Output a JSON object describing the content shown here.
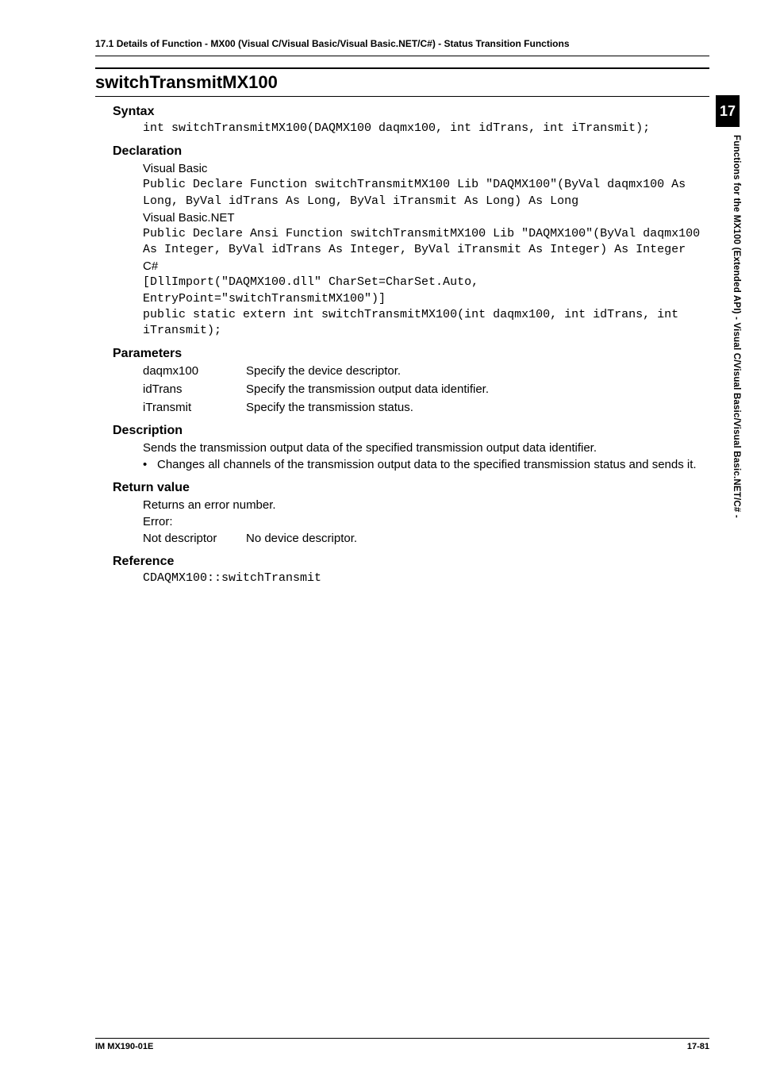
{
  "header": {
    "text": "17.1  Details of  Function - MX00 (Visual C/Visual Basic/Visual Basic.NET/C#) - Status Transition Functions"
  },
  "func_title": "switchTransmitMX100",
  "syntax": {
    "head": "Syntax",
    "code": "int switchTransmitMX100(DAQMX100 daqmx100, int idTrans, int iTransmit);"
  },
  "declaration": {
    "head": "Declaration",
    "vb_label": "Visual Basic",
    "vb_code": "Public Declare Function switchTransmitMX100 Lib \"DAQMX100\"(ByVal daqmx100 As Long, ByVal idTrans As Long, ByVal iTransmit As Long) As Long",
    "vbnet_label": "Visual Basic.NET",
    "vbnet_code": "Public Declare Ansi Function switchTransmitMX100 Lib \"DAQMX100\"(ByVal daqmx100 As Integer, ByVal idTrans As Integer, ByVal iTransmit As Integer) As Integer",
    "cs_label": "C#",
    "cs_code": "[DllImport(\"DAQMX100.dll\" CharSet=CharSet.Auto, EntryPoint=\"switchTransmitMX100\")]\npublic static extern int switchTransmitMX100(int daqmx100, int idTrans, int iTransmit);"
  },
  "parameters": {
    "head": "Parameters",
    "rows": [
      {
        "name": "daqmx100",
        "desc": "Specify the device descriptor."
      },
      {
        "name": "idTrans",
        "desc": "Specify the transmission output data identifier."
      },
      {
        "name": "iTransmit",
        "desc": "Specify the transmission status."
      }
    ]
  },
  "description": {
    "head": "Description",
    "line1": "Sends the transmission output data of the specified transmission output data identifier.",
    "bullet_dot": "•",
    "bullet_text": "Changes all channels of the transmission output data to the specified transmission status and sends it."
  },
  "return_value": {
    "head": "Return value",
    "line1": "Returns an error number.",
    "line2": "Error:",
    "nd_label": "Not descriptor",
    "nd_desc": "No device descriptor."
  },
  "reference": {
    "head": "Reference",
    "code": "CDAQMX100::switchTransmit"
  },
  "side": {
    "tab": "17",
    "text": "Functions for the MX100 (Extended API)  -  Visual C/Visual Basic/Visual Basic.NET/C# -"
  },
  "footer": {
    "left": "IM MX190-01E",
    "right": "17-81"
  },
  "colors": {
    "text": "#000000",
    "background": "#ffffff",
    "tab_bg": "#000000",
    "tab_fg": "#ffffff"
  }
}
